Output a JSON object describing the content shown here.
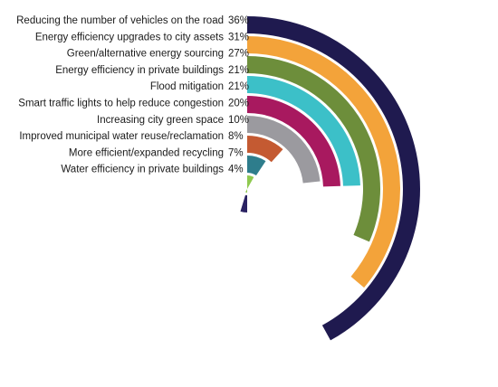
{
  "chart_data": {
    "type": "radial-bar",
    "title": "",
    "categories": [
      "Reducing the number of vehicles on the road",
      "Energy efficiency upgrades to city assets",
      "Green/alternative energy sourcing",
      "Energy efficiency in private buildings",
      "Flood mitigation",
      "Smart traffic lights to help reduce congestion",
      "Increasing city green space",
      "Improved municipal water reuse/reclamation",
      "More efficient/expanded recycling",
      "Water efficiency in private buildings"
    ],
    "values": [
      36,
      31,
      27,
      21,
      21,
      20,
      10,
      8,
      7,
      4
    ],
    "value_labels": [
      "36%",
      "31%",
      "27%",
      "21%",
      "21%",
      "20%",
      "10%",
      "8%",
      "7%",
      "4%"
    ],
    "unit": "%",
    "colors": [
      "#1f1a4f",
      "#f3a33a",
      "#6d8e3b",
      "#3cc0c8",
      "#a8195f",
      "#9b9a9f",
      "#c45a32",
      "#2e7d8c",
      "#8fc94f",
      "#2a2262"
    ],
    "legend": "none",
    "grid": false
  }
}
